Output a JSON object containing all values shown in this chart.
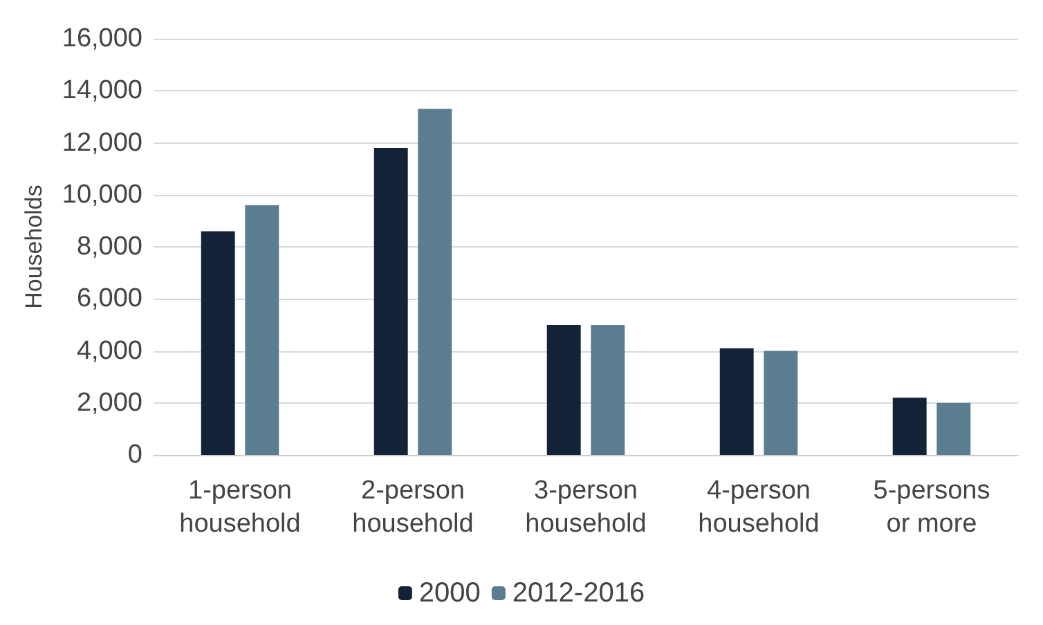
{
  "chart_data": {
    "type": "bar",
    "ylabel": "Households",
    "categories": [
      "1-person\nhousehold",
      "2-person\nhousehold",
      "3-person\nhousehold",
      "4-person\nhousehold",
      "5-persons\nor more"
    ],
    "series": [
      {
        "name": "2000",
        "color": "#132237",
        "values": [
          8600,
          11800,
          5000,
          4100,
          2200
        ]
      },
      {
        "name": "2012-2016",
        "color": "#5b7d90",
        "values": [
          9600,
          13300,
          5000,
          4000,
          2000
        ]
      }
    ],
    "ylim": [
      0,
      16000
    ],
    "yticks": [
      0,
      {
        "value": 2000,
        "label": "2,000"
      },
      {
        "value": 4000,
        "label": "4,000"
      },
      {
        "value": 6000,
        "label": "6,000"
      },
      {
        "value": 8000,
        "label": "8,000"
      },
      {
        "value": 10000,
        "label": "10,000"
      },
      {
        "value": 12000,
        "label": "12,000"
      },
      {
        "value": 14000,
        "label": "14,000"
      },
      {
        "value": 16000,
        "label": "16,000"
      }
    ],
    "grid": "y",
    "legend": "bottom"
  }
}
